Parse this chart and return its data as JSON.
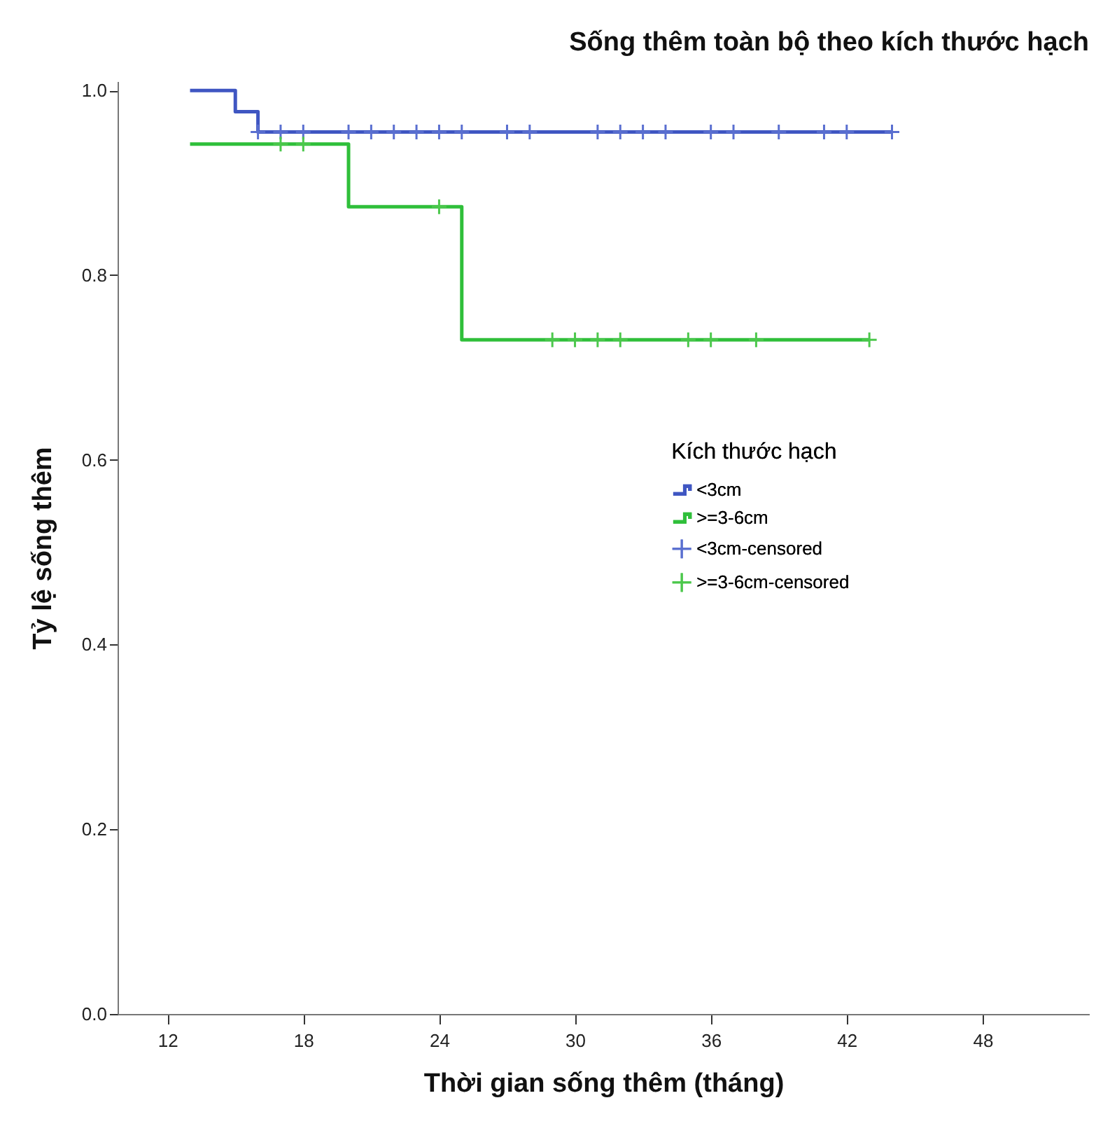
{
  "chart_data": {
    "type": "step",
    "title": "Sống thêm toàn bộ theo kích thước hạch",
    "xlabel": "Thời gian sống thêm (tháng)",
    "ylabel": "Tỷ lệ sống thêm",
    "legend_title": "Kích thước hạch",
    "legend": "right",
    "grid": false,
    "xlim": [
      9.8,
      52.7
    ],
    "xticks": [
      12,
      18,
      24,
      30,
      36,
      42,
      48
    ],
    "ylim": [
      0,
      1.01
    ],
    "yticks": [
      {
        "value": 0,
        "label": "0.0"
      },
      {
        "value": 0.2,
        "label": "0.2"
      },
      {
        "value": 0.4,
        "label": "0.4"
      },
      {
        "value": 0.6,
        "label": "0.6"
      },
      {
        "value": 0.8,
        "label": "0.8"
      },
      {
        "value": 1,
        "label": "1.0"
      }
    ],
    "series": [
      {
        "name": "<3cm",
        "color": "#3f56c2",
        "x": [
          13,
          15,
          16,
          44
        ],
        "values": [
          1,
          0.977,
          0.955,
          0.955
        ]
      },
      {
        "name": ">=3-6cm",
        "color": "#2fbf3a",
        "x": [
          13,
          20,
          25,
          43
        ],
        "values": [
          0.942,
          0.874,
          0.73,
          0.73
        ]
      },
      {
        "name": "<3cm-censored",
        "type": "scatter",
        "marker": "cross",
        "color": "#5a6fd0",
        "x": [
          16,
          17,
          18,
          20,
          21,
          22,
          23,
          24,
          25,
          27,
          28,
          31,
          32,
          33,
          34,
          36,
          37,
          39,
          41,
          42,
          44
        ],
        "values": [
          0.955,
          0.955,
          0.955,
          0.955,
          0.955,
          0.955,
          0.955,
          0.955,
          0.955,
          0.955,
          0.955,
          0.955,
          0.955,
          0.955,
          0.955,
          0.955,
          0.955,
          0.955,
          0.955,
          0.955,
          0.955
        ]
      },
      {
        "name": ">=3-6cm-censored",
        "type": "scatter",
        "marker": "cross",
        "color": "#4cc84c",
        "x": [
          17,
          18,
          24,
          29,
          30,
          31,
          32,
          35,
          36,
          38,
          43
        ],
        "values": [
          0.942,
          0.942,
          0.874,
          0.73,
          0.73,
          0.73,
          0.73,
          0.73,
          0.73,
          0.73,
          0.73
        ]
      }
    ]
  }
}
